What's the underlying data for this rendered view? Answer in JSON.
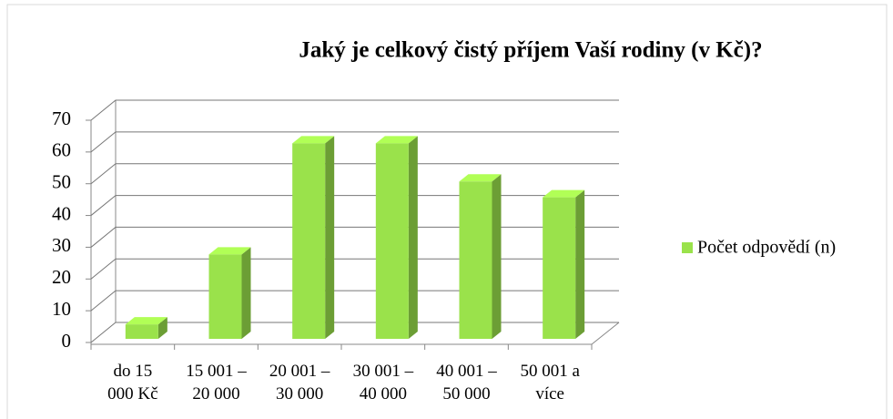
{
  "chart_data": {
    "type": "bar",
    "title": "Jaký je celkový čistý příjem Vaší rodiny (v Kč)?",
    "categories": [
      "do 15\n000 Kč",
      "15 001 –\n20 000",
      "20 001 –\n30 000",
      "30 001 –\n40 000",
      "40 001 –\n50 000",
      "50 001 a\nvíce"
    ],
    "series": [
      {
        "name": "Počet odpovědí (n)",
        "color": "#9ae24b",
        "values": [
          8,
          30,
          65,
          65,
          53,
          48
        ]
      }
    ],
    "ylim": [
      0,
      70
    ],
    "yticks": [
      0,
      10,
      20,
      30,
      40,
      50,
      60,
      70
    ],
    "grid": true,
    "legend": "right"
  }
}
